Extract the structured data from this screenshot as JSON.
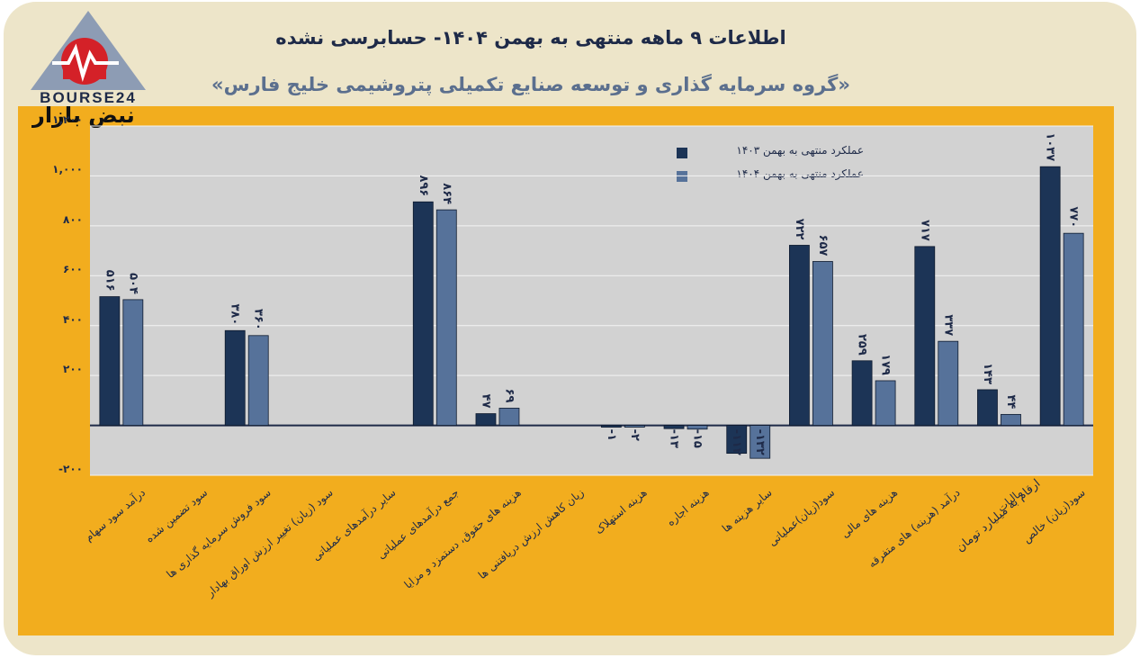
{
  "header": {
    "title": "اطلاعات ۹ ماهه منتهی به بهمن ۱۴۰۴- حسابرسی نشده",
    "subtitle": "«گروه سرمایه گذاری و توسعه صنایع تکمیلی پتروشیمی خلیج فارس»"
  },
  "logo": {
    "brand_text": "BOURSE24",
    "caption": "نبض بازار",
    "icon": "bourse24-pulse-logo"
  },
  "unit_note": "ارقام به میلیارد تومان",
  "colors": {
    "card_bg": "#ede5c9",
    "frame": "#f2ad1e",
    "plot_bg": "#d2d2d2",
    "series_1403": "#1c3456",
    "series_1404": "#56729a",
    "text": "#1e2a48"
  },
  "chart_data": {
    "type": "bar",
    "title": "اطلاعات ۹ ماهه منتهی به بهمن ۱۴۰۴- حسابرسی نشده",
    "subtitle": "«گروه سرمایه گذاری و توسعه صنایع تکمیلی پتروشیمی خلیج فارس»",
    "ylabel": "ارقام به میلیارد تومان",
    "ylim": [
      -200,
      1200
    ],
    "yticks": [
      -200,
      0,
      200,
      400,
      600,
      800,
      1000,
      1200
    ],
    "ytick_labels": [
      "-۲۰۰",
      "",
      "۲۰۰",
      "۴۰۰",
      "۶۰۰",
      "۸۰۰",
      "۱,۰۰۰",
      "۱,۲۰۰"
    ],
    "grid": true,
    "legend_position": "top-right",
    "categories": [
      "درآمد سود سهام",
      "سود تضمین شده",
      "سود فروش سرمایه گذاری ها",
      "سود (زیان) تغییر ارزش اوراق بهادار",
      "سایر درآمدهای عملیاتی",
      "جمع درآمدهای عملیاتی",
      "هزینه های حقوق، دستمزد و مزایا",
      "زیان کاهش ارزش دریافتنی ها",
      "هزینه استهلاک",
      "هزینه اجاره",
      "سایر هزینه ها",
      "سود(زیان)عملیاتی",
      "هزینه های مالی",
      "درآمد (هزینه) های متفرقه",
      "مالیات",
      "سود(زیان) خالص"
    ],
    "series": [
      {
        "name": "عملکرد منتهی به بهمن ۱۴۰۳",
        "color": "#1c3456",
        "values": [
          516,
          0,
          380,
          0,
          0,
          896,
          47,
          0,
          -1,
          -13,
          -112,
          722,
          259,
          717,
          143,
          1037
        ],
        "labels": [
          "۵۱۶",
          "",
          "۳۸۰",
          "",
          "",
          "۸۹۶",
          "۴۷",
          "",
          "-۱",
          "-۱۳",
          "-۱۱۲",
          "۷۲۲",
          "۲۵۹",
          "۷۱۷",
          "۱۴۳",
          "۱۰۳۷"
        ]
      },
      {
        "name": "عملکرد منتهی به بهمن ۱۴۰۴",
        "color": "#56729a",
        "values": [
          504,
          0,
          360,
          0,
          0,
          864,
          69,
          0,
          -2,
          -15,
          -132,
          657,
          179,
          337,
          44,
          770
        ],
        "labels": [
          "۵۰۴",
          "",
          "۳۶۰",
          "",
          "",
          "۸۶۴",
          "۶۹",
          "",
          "-۲",
          "-۱۵",
          "-۱۳۲",
          "۶۵۷",
          "۱۷۹",
          "۳۳۷",
          "۴۴",
          "۷۷۰"
        ]
      }
    ]
  }
}
